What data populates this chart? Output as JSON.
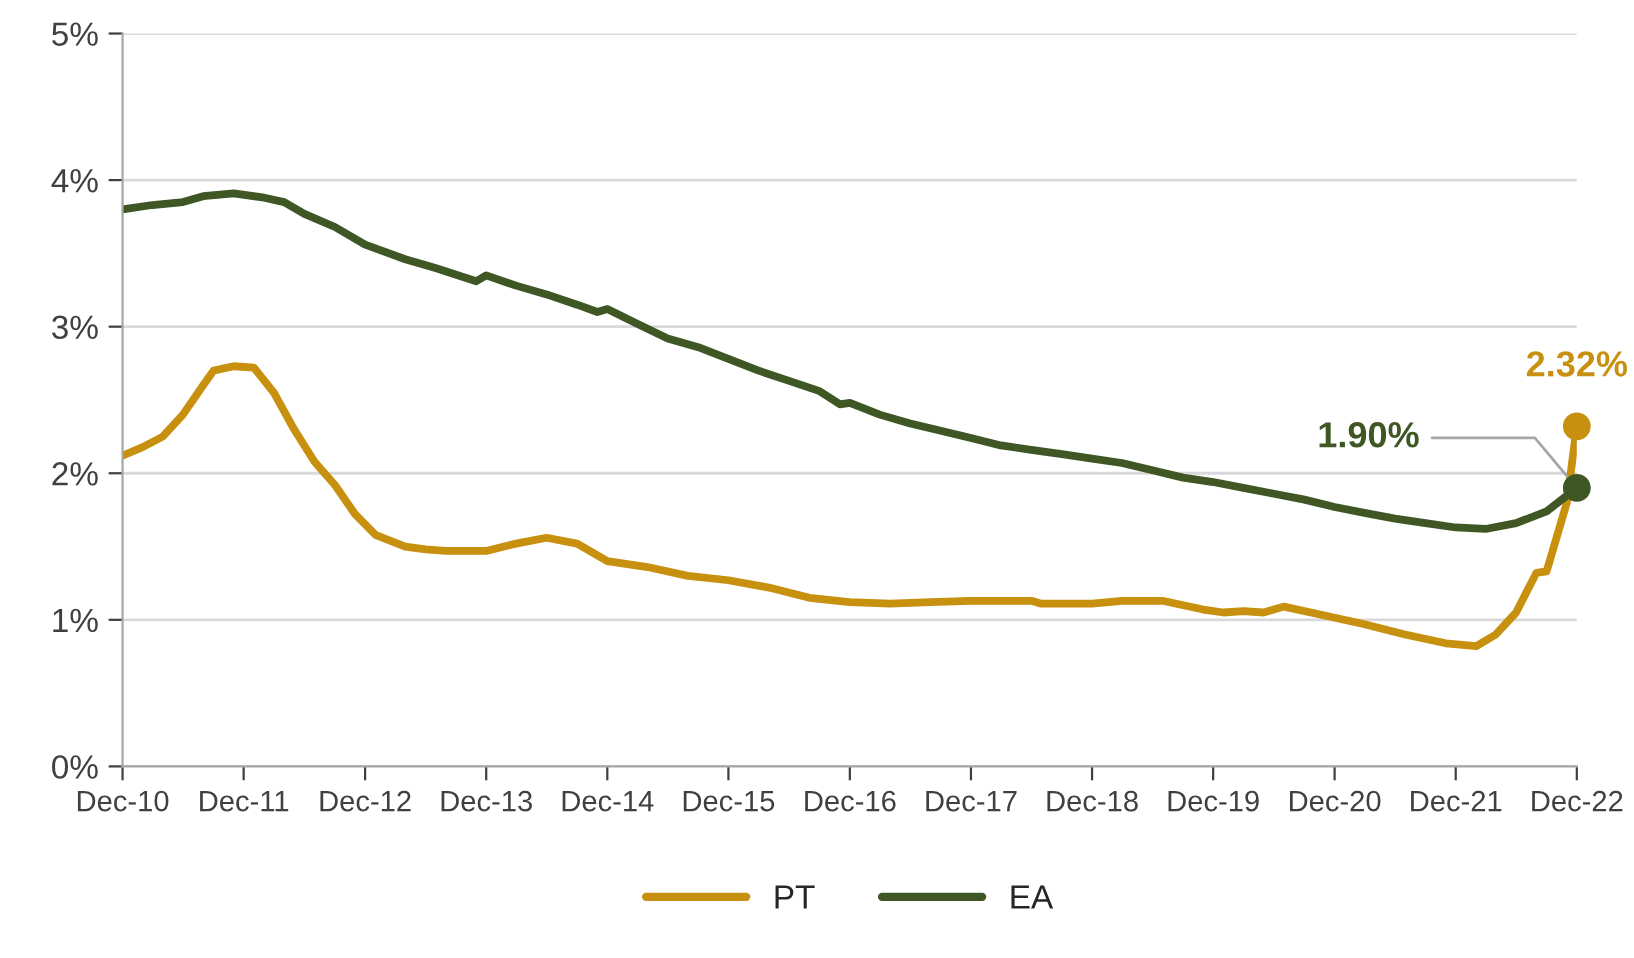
{
  "chart_data": {
    "type": "line",
    "series": [
      {
        "name": "PT",
        "color": "#c8900f",
        "x": [
          "2010-12",
          "2011-02",
          "2011-04",
          "2011-06",
          "2011-08",
          "2011-09",
          "2011-11",
          "2012-01",
          "2012-03",
          "2012-05",
          "2012-07",
          "2012-09",
          "2012-11",
          "2013-01",
          "2013-04",
          "2013-06",
          "2013-08",
          "2013-12",
          "2014-03",
          "2014-06",
          "2014-09",
          "2014-12",
          "2015-04",
          "2015-08",
          "2015-12",
          "2016-04",
          "2016-08",
          "2016-12",
          "2017-04",
          "2017-08",
          "2017-12",
          "2018-06",
          "2018-07",
          "2018-12",
          "2019-03",
          "2019-07",
          "2019-11",
          "2020-01",
          "2020-03",
          "2020-05",
          "2020-07",
          "2020-11",
          "2021-03",
          "2021-07",
          "2021-11",
          "2022-02",
          "2022-04",
          "2022-06",
          "2022-08",
          "2022-09",
          "2022-11",
          "2022-12"
        ],
        "values": [
          2.12,
          2.18,
          2.25,
          2.4,
          2.6,
          2.7,
          2.73,
          2.72,
          2.55,
          2.3,
          2.08,
          1.92,
          1.72,
          1.58,
          1.5,
          1.48,
          1.47,
          1.47,
          1.52,
          1.56,
          1.52,
          1.4,
          1.36,
          1.3,
          1.27,
          1.22,
          1.15,
          1.12,
          1.11,
          1.12,
          1.13,
          1.13,
          1.11,
          1.11,
          1.13,
          1.13,
          1.07,
          1.05,
          1.06,
          1.05,
          1.09,
          1.03,
          0.97,
          0.9,
          0.84,
          0.82,
          0.9,
          1.05,
          1.32,
          1.33,
          1.8,
          2.32
        ]
      },
      {
        "name": "EA",
        "color": "#3f5724",
        "x": [
          "2010-12",
          "2011-03",
          "2011-06",
          "2011-08",
          "2011-11",
          "2012-02",
          "2012-04",
          "2012-06",
          "2012-09",
          "2012-12",
          "2013-04",
          "2013-07",
          "2013-11",
          "2013-12",
          "2014-03",
          "2014-06",
          "2014-09",
          "2014-11",
          "2014-12",
          "2015-03",
          "2015-06",
          "2015-09",
          "2015-12",
          "2016-03",
          "2016-06",
          "2016-09",
          "2016-11",
          "2016-12",
          "2017-03",
          "2017-06",
          "2017-09",
          "2017-12",
          "2018-03",
          "2018-06",
          "2018-09",
          "2018-12",
          "2019-03",
          "2019-06",
          "2019-09",
          "2019-12",
          "2020-03",
          "2020-06",
          "2020-09",
          "2020-12",
          "2021-03",
          "2021-06",
          "2021-09",
          "2021-12",
          "2022-03",
          "2022-06",
          "2022-09",
          "2022-12"
        ],
        "values": [
          3.8,
          3.83,
          3.85,
          3.89,
          3.91,
          3.88,
          3.85,
          3.77,
          3.68,
          3.56,
          3.46,
          3.4,
          3.31,
          3.35,
          3.28,
          3.22,
          3.15,
          3.1,
          3.12,
          3.02,
          2.92,
          2.86,
          2.78,
          2.7,
          2.63,
          2.56,
          2.47,
          2.48,
          2.4,
          2.34,
          2.29,
          2.24,
          2.19,
          2.16,
          2.13,
          2.1,
          2.07,
          2.02,
          1.97,
          1.94,
          1.9,
          1.86,
          1.82,
          1.77,
          1.73,
          1.69,
          1.66,
          1.63,
          1.62,
          1.66,
          1.74,
          1.9
        ]
      }
    ],
    "annotations": [
      {
        "text": "2.32%",
        "x": "2022-12",
        "y": 2.32
      },
      {
        "text": "1.90%",
        "x": "2022-12",
        "y": 1.9
      }
    ],
    "xlim": [
      "2010-12",
      "2022-12"
    ],
    "xticks": [
      {
        "value": "2010-12",
        "label": "Dec-10"
      },
      {
        "value": "2011-12",
        "label": "Dec-11"
      },
      {
        "value": "2012-12",
        "label": "Dec-12"
      },
      {
        "value": "2013-12",
        "label": "Dec-13"
      },
      {
        "value": "2014-12",
        "label": "Dec-14"
      },
      {
        "value": "2015-12",
        "label": "Dec-15"
      },
      {
        "value": "2016-12",
        "label": "Dec-16"
      },
      {
        "value": "2017-12",
        "label": "Dec-17"
      },
      {
        "value": "2018-12",
        "label": "Dec-18"
      },
      {
        "value": "2019-12",
        "label": "Dec-19"
      },
      {
        "value": "2020-12",
        "label": "Dec-20"
      },
      {
        "value": "2021-12",
        "label": "Dec-21"
      },
      {
        "value": "2022-12",
        "label": "Dec-22"
      }
    ],
    "ylim": [
      0,
      5
    ],
    "yticks": [
      {
        "value": 0,
        "label": "0%"
      },
      {
        "value": 1,
        "label": "1%"
      },
      {
        "value": 2,
        "label": "2%"
      },
      {
        "value": 3,
        "label": "3%"
      },
      {
        "value": 4,
        "label": "4%"
      },
      {
        "value": 5,
        "label": "5%"
      }
    ],
    "grid": "y",
    "legend": "bottom",
    "line_style": "solid"
  }
}
